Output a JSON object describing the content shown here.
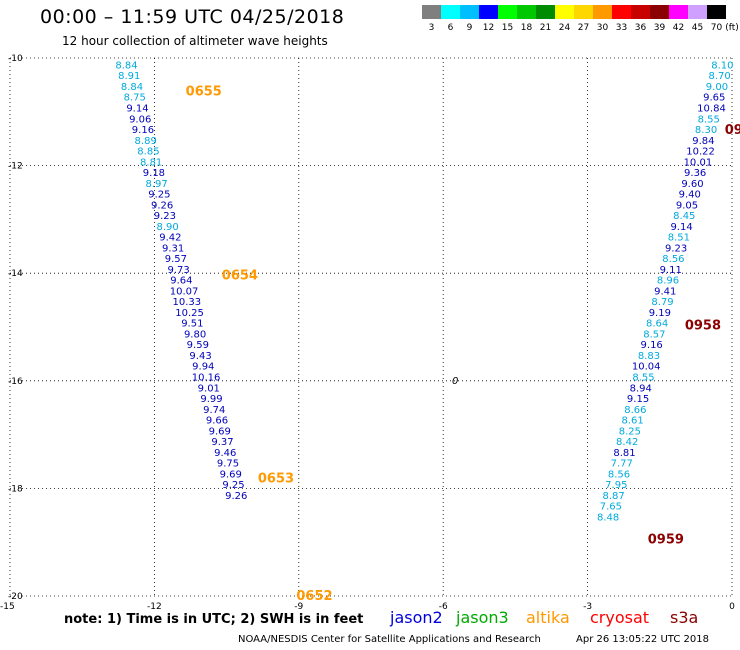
{
  "header": {
    "title": "00:00 – 11:59 UTC 04/25/2018",
    "subtitle": "12 hour collection of altimeter wave heights"
  },
  "scale": {
    "unit": "(ft)",
    "entries": [
      {
        "label": "3",
        "color": "#7f7f7f"
      },
      {
        "label": "6",
        "color": "#00ffff"
      },
      {
        "label": "9",
        "color": "#00bfff"
      },
      {
        "label": "12",
        "color": "#0000ff"
      },
      {
        "label": "15",
        "color": "#00ff00"
      },
      {
        "label": "18",
        "color": "#00c800"
      },
      {
        "label": "21",
        "color": "#008c00"
      },
      {
        "label": "24",
        "color": "#ffff00"
      },
      {
        "label": "27",
        "color": "#ffd700"
      },
      {
        "label": "30",
        "color": "#ff9900"
      },
      {
        "label": "33",
        "color": "#ff0000"
      },
      {
        "label": "36",
        "color": "#c80000"
      },
      {
        "label": "39",
        "color": "#8b0000"
      },
      {
        "label": "42",
        "color": "#ff00ff"
      },
      {
        "label": "45",
        "color": "#cfa0ff"
      },
      {
        "label": "70",
        "color": "#000000"
      }
    ]
  },
  "map": {
    "lon_range": [
      -15,
      0
    ],
    "lat_range": [
      -20,
      -10
    ],
    "lon_ticks": [
      "-15",
      "-12",
      "-9",
      "-6",
      "-3",
      "0"
    ],
    "lat_ticks": [
      "-10",
      "-12",
      "-14",
      "-16",
      "-18",
      "-20"
    ],
    "marker_label": "0",
    "marker_lon": -5.75,
    "marker_lat": -16.0
  },
  "tracks": [
    {
      "name": "left-track",
      "lat_start": -10.12,
      "lat_step": 0.2,
      "lon_start": -12.58,
      "lon_step": 0.057,
      "values": [
        "8.84",
        "8.91",
        "8.84",
        "8.75",
        "9.14",
        "9.06",
        "9.16",
        "8.89",
        "8.85",
        "8.81",
        "9.18",
        "8.97",
        "9.25",
        "9.26",
        "9.23",
        "8.90",
        "9.42",
        "9.31",
        "9.57",
        "9.73",
        "9.64",
        "10.07",
        "10.33",
        "10.25",
        "9.51",
        "9.80",
        "9.59",
        "9.43",
        "9.94",
        "10.16",
        "9.01",
        "9.99",
        "9.74",
        "9.66",
        "9.69",
        "9.37",
        "9.46",
        "9.75",
        "9.69",
        "9.25",
        "9.26"
      ],
      "colors": [
        "#00aadd",
        "#00aadd",
        "#00aadd",
        "#00aadd",
        "#0000bb",
        "#0000bb",
        "#0000bb",
        "#00aadd",
        "#00aadd",
        "#00aadd",
        "#0000bb",
        "#00aadd",
        "#0000bb",
        "#0000bb",
        "#0000bb",
        "#00aadd",
        "#0000bb",
        "#0000bb",
        "#0000bb",
        "#0000bb",
        "#0000bb",
        "#0000bb",
        "#0000bb",
        "#0000bb",
        "#0000bb",
        "#0000bb",
        "#0000bb",
        "#0000bb",
        "#0000bb",
        "#0000bb",
        "#0000bb",
        "#0000bb",
        "#0000bb",
        "#0000bb",
        "#0000bb",
        "#0000bb",
        "#0000bb",
        "#0000bb",
        "#0000bb",
        "#0000bb",
        "#0000bb"
      ]
    },
    {
      "name": "right-track",
      "lat_start": -10.12,
      "lat_step": 0.2,
      "lon_start": -0.2,
      "lon_step": -0.0565,
      "values": [
        "8.10",
        "8.70",
        "9.00",
        "9.65",
        "10.84",
        "8.55",
        "8.30",
        "9.84",
        "10.22",
        "10.01",
        "9.36",
        "9.60",
        "9.40",
        "9.05",
        "8.45",
        "9.14",
        "8.51",
        "9.23",
        "8.56",
        "9.11",
        "8.96",
        "9.41",
        "8.79",
        "9.19",
        "8.64",
        "8.57",
        "9.16",
        "8.83",
        "10.04",
        "8.55",
        "8.94",
        "9.15",
        "8.66",
        "8.61",
        "8.25",
        "8.42",
        "8.81",
        "7.77",
        "8.56",
        "7.95",
        "8.87",
        "7.65",
        "8.48"
      ],
      "colors": [
        "#00aadd",
        "#00aadd",
        "#00aadd",
        "#0000bb",
        "#0000bb",
        "#00aadd",
        "#00aadd",
        "#0000bb",
        "#0000bb",
        "#0000bb",
        "#0000bb",
        "#0000bb",
        "#0000bb",
        "#0000bb",
        "#00aadd",
        "#0000bb",
        "#00aadd",
        "#0000bb",
        "#00aadd",
        "#0000bb",
        "#00aadd",
        "#0000bb",
        "#00aadd",
        "#0000bb",
        "#00aadd",
        "#00aadd",
        "#0000bb",
        "#00aadd",
        "#0000bb",
        "#00aadd",
        "#0000bb",
        "#0000bb",
        "#00aadd",
        "#00aadd",
        "#00aadd",
        "#00aadd",
        "#0000bb",
        "#00aadd",
        "#00aadd",
        "#00aadd",
        "#00aadd",
        "#00aadd",
        "#00aadd"
      ]
    }
  ],
  "time_labels": [
    {
      "text": "0655",
      "lon": -11.35,
      "lat": -10.6,
      "color": "#ff9900"
    },
    {
      "text": "0654",
      "lon": -10.6,
      "lat": -14.02,
      "color": "#ff9900"
    },
    {
      "text": "0653",
      "lon": -9.85,
      "lat": -17.8,
      "color": "#ff9900"
    },
    {
      "text": "0652",
      "lon": -9.05,
      "lat": -19.98,
      "color": "#ff9900"
    },
    {
      "text": "09",
      "lon": -0.15,
      "lat": -11.32,
      "color": "#8b0000"
    },
    {
      "text": "0958",
      "lon": -0.98,
      "lat": -14.95,
      "color": "#8b0000"
    },
    {
      "text": "0959",
      "lon": -1.75,
      "lat": -18.93,
      "color": "#8b0000"
    }
  ],
  "footer": {
    "note": "note: 1) Time is in UTC; 2) SWH is in feet",
    "legend": [
      {
        "label": "jason2",
        "color": "#0000dd"
      },
      {
        "label": "jason3",
        "color": "#00aa00"
      },
      {
        "label": "altika",
        "color": "#ff9900"
      },
      {
        "label": "cryosat",
        "color": "#ff0000"
      },
      {
        "label": "s3a",
        "color": "#8b0000"
      }
    ],
    "credit": "NOAA/NESDIS Center for Satellite Applications and Research",
    "timestamp": "Apr 26 13:05:22 UTC 2018"
  }
}
